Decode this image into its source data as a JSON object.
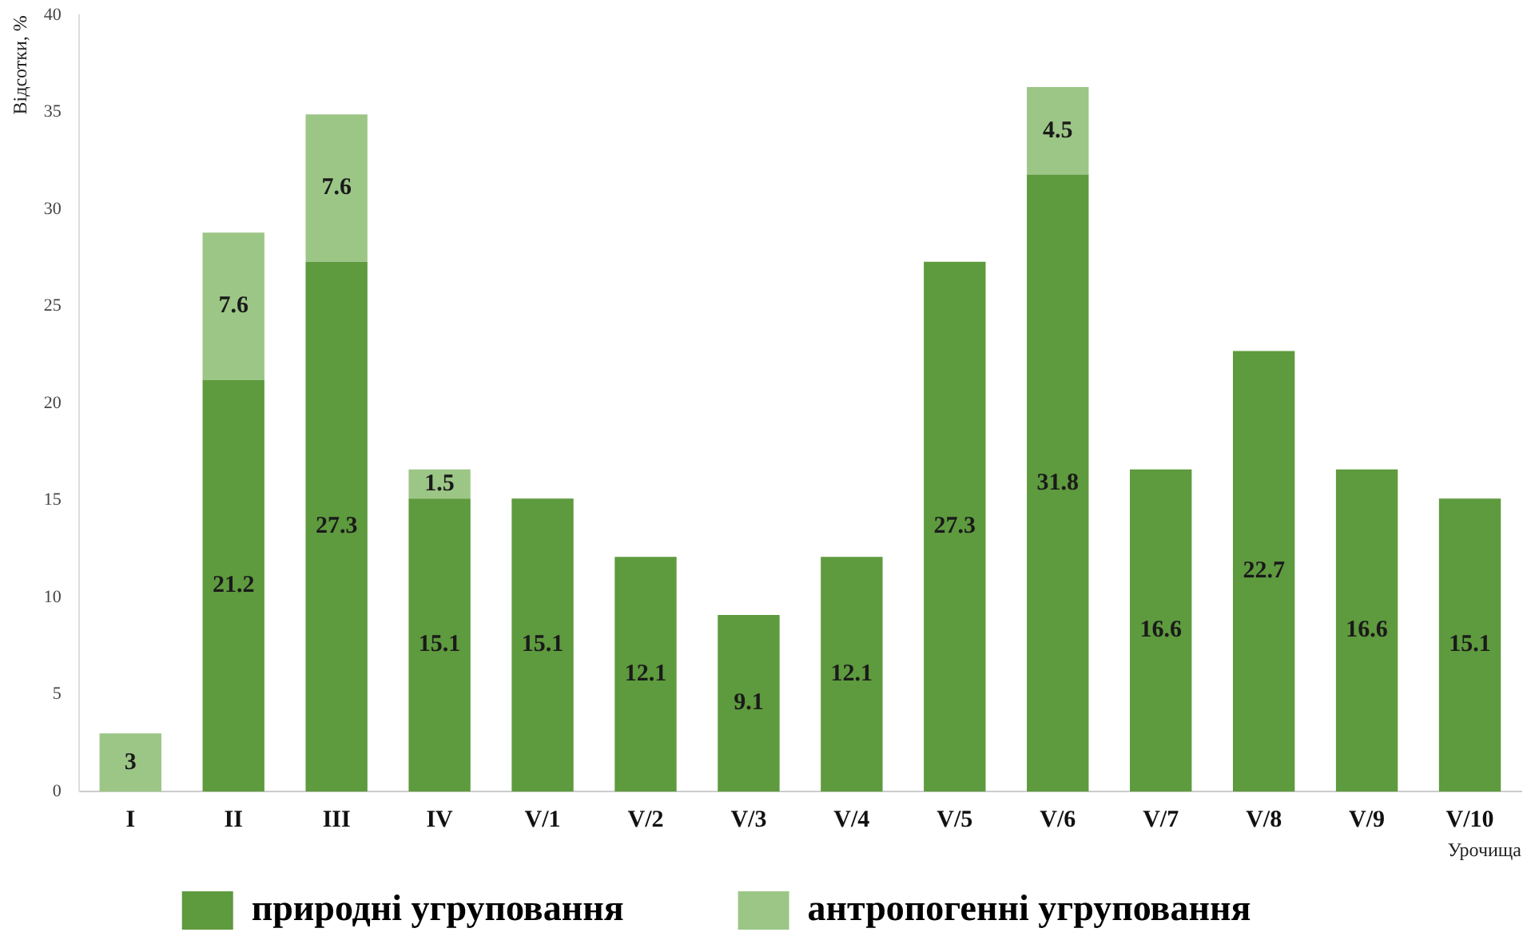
{
  "chart_data": {
    "type": "bar",
    "stacked": true,
    "xlabel": "Урочища",
    "ylabel": "Відсотки, %",
    "categories": [
      "I",
      "II",
      "III",
      "IV",
      "V/1",
      "V/2",
      "V/3",
      "V/4",
      "V/5",
      "V/6",
      "V/7",
      "V/8",
      "V/9",
      "V/10"
    ],
    "series": [
      {
        "name": "природні угруповання",
        "color": "#5e9a3e",
        "values": [
          null,
          21.2,
          27.3,
          15.1,
          15.1,
          12.1,
          9.1,
          12.1,
          27.3,
          31.8,
          16.6,
          22.7,
          16.6,
          15.1
        ]
      },
      {
        "name": "антропогенні угруповання",
        "color": "#9cc686",
        "values": [
          3,
          7.6,
          7.6,
          1.5,
          null,
          null,
          null,
          null,
          null,
          4.5,
          null,
          null,
          null,
          null
        ]
      }
    ],
    "ylim": [
      0,
      40
    ],
    "yticks": [
      0,
      5,
      10,
      15,
      20,
      25,
      30,
      35,
      40
    ],
    "grid": false,
    "legend": "bottom",
    "data_labels": true
  }
}
